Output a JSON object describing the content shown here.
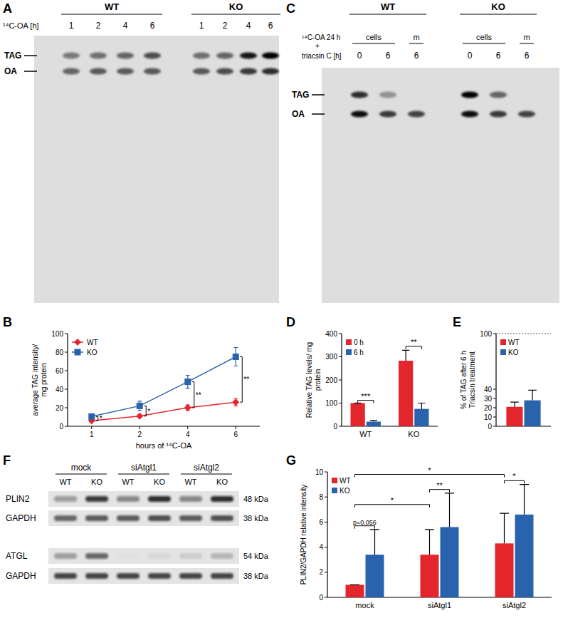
{
  "chart_data": [
    {
      "type": "line",
      "title": "B",
      "x_label": "hours of ¹⁴C-OA",
      "y_label": "average TAG intensity/ mg protein",
      "categories": [
        "1",
        "2",
        "4",
        "6"
      ],
      "ylim": [
        0,
        100
      ],
      "yticks": [
        0,
        20,
        40,
        60,
        80,
        100
      ],
      "legend": "upper left",
      "series": [
        {
          "name": "WT",
          "color": "#e3262c",
          "marker": "diamond",
          "values": [
            6,
            11,
            20,
            26
          ],
          "errors": [
            1,
            1,
            3,
            4
          ]
        },
        {
          "name": "KO",
          "color": "#2a63ad",
          "marker": "square",
          "values": [
            10.5,
            22,
            48,
            75
          ],
          "errors": [
            2,
            5,
            7,
            10
          ]
        }
      ],
      "annotations": [
        {
          "text": "*",
          "category": 0
        },
        {
          "text": "*",
          "category": 1
        },
        {
          "text": "**",
          "category": 2
        },
        {
          "text": "**",
          "category": 3
        }
      ]
    },
    {
      "type": "bar",
      "title": "D",
      "y_label": "Relative TAG levels/ mg protein",
      "categories": [
        "WT",
        "KO"
      ],
      "ylim": [
        0,
        400
      ],
      "yticks": [
        0,
        100,
        200,
        300,
        400
      ],
      "legend": "upper left",
      "series": [
        {
          "name": "0 h",
          "color": "#e3262c",
          "values": [
            100,
            283
          ],
          "errors": [
            0,
            45
          ]
        },
        {
          "name": "6 h",
          "color": "#2a63ad",
          "values": [
            20,
            75
          ],
          "errors": [
            5,
            25
          ]
        }
      ],
      "annotations": [
        {
          "text": "***",
          "from": [
            0,
            0
          ],
          "to": [
            0,
            1
          ],
          "y": 112
        },
        {
          "text": "**",
          "from": [
            1,
            0
          ],
          "to": [
            1,
            1
          ],
          "y": 345
        }
      ]
    },
    {
      "type": "bar",
      "title": "E",
      "y_label": "% of TAG after 6 h Triacsin treatment",
      "categories": [
        null
      ],
      "ylim": [
        0,
        100
      ],
      "yticks": [
        0,
        10,
        20,
        30,
        40,
        100
      ],
      "reference_value": 100,
      "legend": "upper left",
      "series": [
        {
          "name": "WT",
          "color": "#e3262c",
          "values": [
            21
          ],
          "errors": [
            5
          ]
        },
        {
          "name": "KO",
          "color": "#2a63ad",
          "values": [
            28
          ],
          "errors": [
            11
          ]
        }
      ]
    },
    {
      "type": "bar",
      "title": "G",
      "y_label": "PLIN2/GAPDH relative intensity",
      "categories": [
        "mock",
        "siAtgl1",
        "siAtgl2"
      ],
      "ylim": [
        0,
        10
      ],
      "yticks": [
        0,
        2,
        4,
        6,
        8,
        10
      ],
      "legend": "upper left",
      "series": [
        {
          "name": "WT",
          "color": "#e3262c",
          "values": [
            1,
            3.4,
            4.3
          ],
          "errors": [
            0,
            2,
            2.4
          ]
        },
        {
          "name": "KO",
          "color": "#2a63ad",
          "values": [
            3.4,
            5.6,
            6.6
          ],
          "errors": [
            2,
            2.7,
            2.4
          ]
        }
      ],
      "annotations": [
        {
          "text": "p=0.056",
          "from": [
            0,
            0
          ],
          "to": [
            0,
            1
          ],
          "y": 5.7
        },
        {
          "text": "**",
          "from": [
            1,
            0
          ],
          "to": [
            1,
            1
          ],
          "y": 8.6
        },
        {
          "text": "*",
          "from": [
            2,
            0
          ],
          "to": [
            2,
            1
          ],
          "y": 9.3
        },
        {
          "text": "*",
          "from": [
            0,
            0
          ],
          "to": [
            1,
            0
          ],
          "y": 7.4
        },
        {
          "text": "*",
          "from": [
            0,
            0
          ],
          "to": [
            2,
            0
          ],
          "y": 9.8
        }
      ]
    }
  ],
  "figure": {
    "A": {
      "letter": "A",
      "groups": [
        "WT",
        "KO"
      ],
      "row_label": "¹⁴C-OA [h]",
      "lanes": [
        "1",
        "2",
        "4",
        "6",
        "1",
        "2",
        "4",
        "6"
      ],
      "spot_labels": [
        "TAG",
        "OA"
      ],
      "spots": [
        [
          0.45,
          0.5,
          0.55,
          0.65,
          0.5,
          0.55,
          0.9,
          1
        ],
        [
          0.55,
          0.6,
          0.6,
          0.6,
          0.6,
          0.65,
          0.75,
          0.8
        ]
      ]
    },
    "C": {
      "letter": "C",
      "groups": [
        "WT",
        "KO"
      ],
      "row_labels": [
        "¹⁴C-OA 24 h",
        "+",
        "triacsin C [h]"
      ],
      "samples": [
        {
          "label": "cells",
          "span": 2
        },
        {
          "label": "m",
          "span": 1
        },
        {
          "label": "cells",
          "span": 2
        },
        {
          "label": "m",
          "span": 1
        }
      ],
      "lanes": [
        "0",
        "6",
        "6",
        "0",
        "6",
        "6"
      ],
      "spot_labels": [
        "TAG",
        "OA"
      ],
      "spots": [
        [
          0.8,
          0.35,
          0,
          1,
          0.55,
          0
        ],
        [
          0.95,
          0.75,
          0.7,
          0.95,
          0.75,
          0.7
        ]
      ]
    },
    "F": {
      "letter": "F",
      "conditions": [
        "mock",
        "siAtgl1",
        "siAtgl2"
      ],
      "lanes": [
        "WT",
        "KO",
        "WT",
        "KO",
        "WT",
        "KO"
      ],
      "blots": [
        {
          "label": "PLIN2",
          "size": "48 kDa",
          "intensity": [
            0.35,
            0.8,
            0.45,
            0.85,
            0.45,
            0.85
          ]
        },
        {
          "label": "GAPDH",
          "size": "38 kDa",
          "intensity": [
            0.6,
            0.65,
            0.65,
            0.7,
            0.65,
            0.7
          ]
        },
        {
          "label": "ATGL",
          "size": "54 kDa",
          "intensity": [
            0.3,
            0.6,
            0.02,
            0.05,
            0.1,
            0.2
          ]
        },
        {
          "label": "GAPDH",
          "size": "38 kDa",
          "intensity": [
            0.75,
            0.75,
            0.75,
            0.75,
            0.75,
            0.75
          ]
        }
      ]
    }
  }
}
